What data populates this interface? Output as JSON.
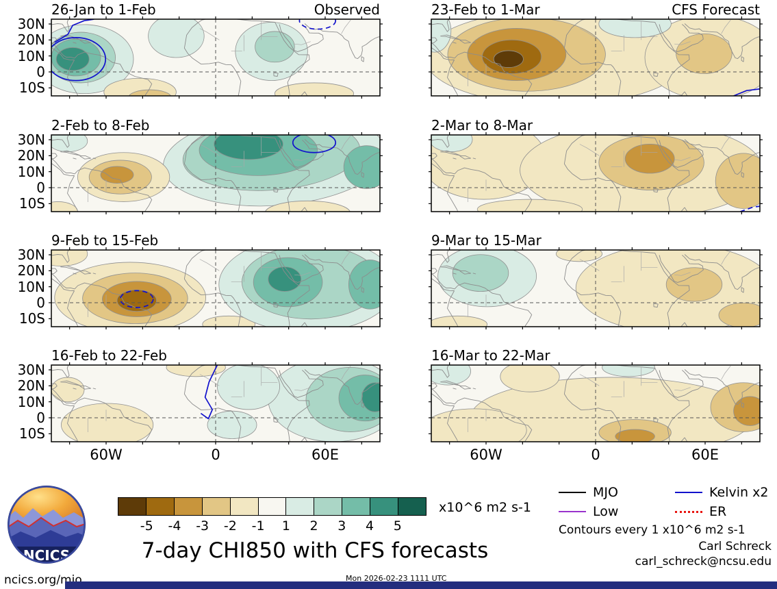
{
  "figure": {
    "title": "7-day CHI850 with CFS forecasts",
    "unit_label": "x10^6 m2 s-1",
    "contour_note": "Contours every 1 x10^6 m2 s-1",
    "credit_name": "Carl Schreck",
    "credit_email": "carl_schreck@ncsu.edu",
    "footer_left": "ncics.org/mjo",
    "timestamp": "Mon 2026-02-23 1111 UTC",
    "logo_text": "NCICS"
  },
  "legend": {
    "items": [
      {
        "key": "mjo",
        "label": "MJO",
        "color": "#000000",
        "line_style": "solid"
      },
      {
        "key": "kelvin",
        "label": "Kelvin x2",
        "color": "#1111cc",
        "line_style": "solid"
      },
      {
        "key": "low",
        "label": "Low",
        "color": "#9932cc",
        "line_style": "solid"
      },
      {
        "key": "er",
        "label": "ER",
        "color": "#e8140f",
        "line_style": "dotted"
      }
    ]
  },
  "chart_data": {
    "type": "heatmap",
    "description": "Grid of 8 filled-contour longitude-latitude maps of 7-day mean CHI850 velocity potential anomalies; left column observed, right column CFS forecast. Units x10^6 m2 s-1, contours every 1.",
    "columns": [
      "Observed",
      "CFS Forecast"
    ],
    "axes": {
      "lat_labels": [
        "30N",
        "20N",
        "10N",
        "0",
        "10S"
      ],
      "lat_values": [
        30,
        20,
        10,
        0,
        -10
      ],
      "lon_labels": [
        "60W",
        "0",
        "60E"
      ],
      "lon_values": [
        -60,
        0,
        60
      ],
      "lat_range": [
        -15,
        33
      ],
      "lon_range": [
        -90,
        90
      ],
      "grid": "dashed line at equator and prime meridian"
    },
    "colorbar": {
      "tick_labels": [
        "-5",
        "-4",
        "-3",
        "-2",
        "-1",
        "1",
        "2",
        "3",
        "4",
        "5"
      ],
      "levels": [
        -5,
        -4,
        -3,
        -2,
        -1,
        1,
        2,
        3,
        4,
        5
      ],
      "colors": [
        "#5e3b08",
        "#9f6a10",
        "#c8953c",
        "#e2c685",
        "#f2e7c2",
        "#f8f7f1",
        "#d9ece4",
        "#abd6c6",
        "#74bda8",
        "#37917d",
        "#15604f"
      ],
      "unit": "x10^6 m2 s-1"
    },
    "panels": [
      {
        "title": "26-Jan to 1-Feb",
        "column": "Observed",
        "blobs": [
          {
            "x": 0.1,
            "y": 0.52,
            "rx": 0.15,
            "ry": 0.45,
            "level": 1
          },
          {
            "x": 0.09,
            "y": 0.5,
            "rx": 0.105,
            "ry": 0.33,
            "level": 2
          },
          {
            "x": 0.075,
            "y": 0.5,
            "rx": 0.075,
            "ry": 0.24,
            "level": 3
          },
          {
            "x": 0.065,
            "y": 0.52,
            "rx": 0.05,
            "ry": 0.15,
            "level": 4
          },
          {
            "x": 0.38,
            "y": 0.22,
            "rx": 0.085,
            "ry": 0.28,
            "level": 1
          },
          {
            "x": 0.67,
            "y": 0.42,
            "rx": 0.11,
            "ry": 0.38,
            "level": 1
          },
          {
            "x": 0.68,
            "y": 0.36,
            "rx": 0.06,
            "ry": 0.2,
            "level": 2
          },
          {
            "x": 0.27,
            "y": 0.95,
            "rx": 0.11,
            "ry": 0.18,
            "level": -1
          },
          {
            "x": 0.3,
            "y": 1.02,
            "rx": 0.065,
            "ry": 0.1,
            "level": -2
          },
          {
            "x": 0.8,
            "y": 0.97,
            "rx": 0.12,
            "ry": 0.14,
            "level": -1
          }
        ],
        "contour_lines": [
          {
            "shape": "ellipse",
            "x": 0.075,
            "y": 0.52,
            "rx": 0.09,
            "ry": 0.28,
            "wave": "kelvin",
            "dashed": false
          },
          {
            "shape": "line",
            "points": [
              [
                0.01,
                0.3
              ],
              [
                0.05,
                0.2
              ],
              [
                0.065,
                0.08
              ],
              [
                0.1,
                0.02
              ],
              [
                0.13,
                0.0
              ]
            ],
            "wave": "kelvin",
            "dashed": false
          },
          {
            "shape": "ellipse",
            "x": 0.81,
            "y": 0.02,
            "rx": 0.055,
            "ry": 0.11,
            "wave": "kelvin",
            "dashed": true
          }
        ]
      },
      {
        "title": "2-Feb to 8-Feb",
        "column": "Observed",
        "blobs": [
          {
            "x": 0.68,
            "y": 0.32,
            "rx": 0.34,
            "ry": 0.6,
            "level": 1,
            "rot": -4
          },
          {
            "x": 0.67,
            "y": 0.26,
            "rx": 0.27,
            "ry": 0.46,
            "level": 2,
            "rot": -4
          },
          {
            "x": 0.63,
            "y": 0.2,
            "rx": 0.18,
            "ry": 0.33,
            "level": 3
          },
          {
            "x": 0.6,
            "y": 0.12,
            "rx": 0.105,
            "ry": 0.2,
            "level": 4
          },
          {
            "x": 0.96,
            "y": 0.42,
            "rx": 0.07,
            "ry": 0.28,
            "level": 3
          },
          {
            "x": 0.05,
            "y": 0.08,
            "rx": 0.06,
            "ry": 0.14,
            "level": 1
          },
          {
            "x": 0.22,
            "y": 0.55,
            "rx": 0.14,
            "ry": 0.32,
            "level": -1
          },
          {
            "x": 0.21,
            "y": 0.55,
            "rx": 0.095,
            "ry": 0.22,
            "level": -2
          },
          {
            "x": 0.2,
            "y": 0.52,
            "rx": 0.05,
            "ry": 0.11,
            "level": -3
          },
          {
            "x": 0.78,
            "y": 1.02,
            "rx": 0.13,
            "ry": 0.16,
            "level": -1
          },
          {
            "x": 0.02,
            "y": 1.0,
            "rx": 0.06,
            "ry": 0.13,
            "level": -1
          }
        ],
        "contour_lines": [
          {
            "shape": "ellipse",
            "x": 0.8,
            "y": 0.1,
            "rx": 0.065,
            "ry": 0.13,
            "wave": "kelvin",
            "dashed": false
          }
        ]
      },
      {
        "title": "9-Feb to 15-Feb",
        "column": "Observed",
        "blobs": [
          {
            "x": 0.24,
            "y": 0.62,
            "rx": 0.23,
            "ry": 0.46,
            "level": -1
          },
          {
            "x": 0.255,
            "y": 0.63,
            "rx": 0.16,
            "ry": 0.33,
            "level": -2
          },
          {
            "x": 0.26,
            "y": 0.64,
            "rx": 0.105,
            "ry": 0.23,
            "level": -3
          },
          {
            "x": 0.26,
            "y": 0.66,
            "rx": 0.06,
            "ry": 0.14,
            "level": -4
          },
          {
            "x": 0.03,
            "y": 0.05,
            "rx": 0.08,
            "ry": 0.16,
            "level": -1
          },
          {
            "x": 0.54,
            "y": 0.97,
            "rx": 0.08,
            "ry": 0.11,
            "level": -1
          },
          {
            "x": 0.78,
            "y": 0.45,
            "rx": 0.27,
            "ry": 0.62,
            "level": 1
          },
          {
            "x": 0.79,
            "y": 0.42,
            "rx": 0.21,
            "ry": 0.48,
            "level": 2
          },
          {
            "x": 0.72,
            "y": 0.42,
            "rx": 0.105,
            "ry": 0.32,
            "level": 3
          },
          {
            "x": 0.97,
            "y": 0.45,
            "rx": 0.065,
            "ry": 0.32,
            "level": 3
          },
          {
            "x": 0.71,
            "y": 0.38,
            "rx": 0.05,
            "ry": 0.16,
            "level": 4
          }
        ],
        "contour_lines": [
          {
            "shape": "ellipse",
            "x": 0.26,
            "y": 0.64,
            "rx": 0.05,
            "ry": 0.11,
            "wave": "kelvin",
            "dashed": true
          }
        ]
      },
      {
        "title": "16-Feb to 22-Feb",
        "column": "Observed",
        "blobs": [
          {
            "x": 0.86,
            "y": 0.45,
            "rx": 0.2,
            "ry": 0.55,
            "level": 1
          },
          {
            "x": 0.91,
            "y": 0.45,
            "rx": 0.135,
            "ry": 0.42,
            "level": 2
          },
          {
            "x": 0.955,
            "y": 0.43,
            "rx": 0.08,
            "ry": 0.3,
            "level": 3
          },
          {
            "x": 0.985,
            "y": 0.42,
            "rx": 0.04,
            "ry": 0.19,
            "level": 4
          },
          {
            "x": 0.6,
            "y": 0.28,
            "rx": 0.095,
            "ry": 0.3,
            "level": 1
          },
          {
            "x": 0.55,
            "y": 0.78,
            "rx": 0.075,
            "ry": 0.18,
            "level": 1
          },
          {
            "x": 0.17,
            "y": 0.78,
            "rx": 0.14,
            "ry": 0.28,
            "level": -1
          },
          {
            "x": 0.44,
            "y": 0.03,
            "rx": 0.09,
            "ry": 0.12,
            "level": -1
          },
          {
            "x": 0.05,
            "y": 0.32,
            "rx": 0.05,
            "ry": 0.16,
            "level": -1
          }
        ],
        "contour_lines": [
          {
            "shape": "line",
            "points": [
              [
                0.505,
                0.0
              ],
              [
                0.48,
                0.22
              ],
              [
                0.468,
                0.42
              ],
              [
                0.49,
                0.58
              ],
              [
                0.478,
                0.7
              ],
              [
                0.455,
                0.63
              ]
            ],
            "wave": "kelvin",
            "dashed": false
          }
        ]
      },
      {
        "title": "23-Feb to 1-Mar",
        "column": "CFS Forecast",
        "blobs": [
          {
            "x": 0.38,
            "y": 0.5,
            "rx": 0.4,
            "ry": 0.62,
            "level": -1
          },
          {
            "x": 0.85,
            "y": 0.5,
            "rx": 0.2,
            "ry": 0.55,
            "level": -1
          },
          {
            "x": 0.29,
            "y": 0.46,
            "rx": 0.24,
            "ry": 0.48,
            "level": -2
          },
          {
            "x": 0.26,
            "y": 0.46,
            "rx": 0.15,
            "ry": 0.34,
            "level": -3
          },
          {
            "x": 0.245,
            "y": 0.49,
            "rx": 0.09,
            "ry": 0.22,
            "level": -4
          },
          {
            "x": 0.235,
            "y": 0.52,
            "rx": 0.045,
            "ry": 0.11,
            "level": -5
          },
          {
            "x": 0.83,
            "y": 0.45,
            "rx": 0.085,
            "ry": 0.26,
            "level": -2
          },
          {
            "x": 0.01,
            "y": 0.15,
            "rx": 0.05,
            "ry": 0.28,
            "level": 1
          },
          {
            "x": 0.62,
            "y": 0.06,
            "rx": 0.11,
            "ry": 0.18,
            "level": 1
          }
        ],
        "contour_lines": [
          {
            "shape": "line",
            "points": [
              [
                0.92,
                1.0
              ],
              [
                0.96,
                0.93
              ],
              [
                1.0,
                0.91
              ]
            ],
            "wave": "kelvin",
            "dashed": false
          }
        ]
      },
      {
        "title": "2-Mar to 8-Mar",
        "column": "CFS Forecast",
        "blobs": [
          {
            "x": 0.16,
            "y": 0.32,
            "rx": 0.19,
            "ry": 0.52,
            "level": -1
          },
          {
            "x": 0.64,
            "y": 0.46,
            "rx": 0.37,
            "ry": 0.62,
            "level": -1
          },
          {
            "x": 0.67,
            "y": 0.36,
            "rx": 0.16,
            "ry": 0.36,
            "level": -2
          },
          {
            "x": 0.665,
            "y": 0.31,
            "rx": 0.075,
            "ry": 0.19,
            "level": -3
          },
          {
            "x": 0.95,
            "y": 0.6,
            "rx": 0.085,
            "ry": 0.36,
            "level": -2
          },
          {
            "x": 0.3,
            "y": 0.97,
            "rx": 0.16,
            "ry": 0.13,
            "level": -1
          },
          {
            "x": 0.06,
            "y": 0.06,
            "rx": 0.065,
            "ry": 0.16,
            "level": 1
          }
        ],
        "contour_lines": [
          {
            "shape": "line",
            "points": [
              [
                0.94,
                1.0
              ],
              [
                0.98,
                0.94
              ],
              [
                1.0,
                0.93
              ]
            ],
            "wave": "kelvin",
            "dashed": true
          }
        ]
      },
      {
        "title": "9-Mar to 15-Mar",
        "column": "CFS Forecast",
        "blobs": [
          {
            "x": 0.17,
            "y": 0.34,
            "rx": 0.15,
            "ry": 0.4,
            "level": 1
          },
          {
            "x": 0.15,
            "y": 0.3,
            "rx": 0.085,
            "ry": 0.24,
            "level": 2
          },
          {
            "x": 0.74,
            "y": 0.5,
            "rx": 0.3,
            "ry": 0.58,
            "level": -1
          },
          {
            "x": 0.8,
            "y": 0.45,
            "rx": 0.085,
            "ry": 0.22,
            "level": -2
          },
          {
            "x": 0.95,
            "y": 0.85,
            "rx": 0.075,
            "ry": 0.16,
            "level": -2
          },
          {
            "x": 0.08,
            "y": 0.97,
            "rx": 0.09,
            "ry": 0.11,
            "level": -1
          },
          {
            "x": 0.45,
            "y": 0.05,
            "rx": 0.07,
            "ry": 0.1,
            "level": -1
          }
        ],
        "contour_lines": []
      },
      {
        "title": "16-Mar to 22-Mar",
        "column": "CFS Forecast",
        "blobs": [
          {
            "x": 0.55,
            "y": 0.68,
            "rx": 0.43,
            "ry": 0.52,
            "level": -1
          },
          {
            "x": 0.13,
            "y": 0.85,
            "rx": 0.16,
            "ry": 0.28,
            "level": -1
          },
          {
            "x": 0.3,
            "y": 0.15,
            "rx": 0.09,
            "ry": 0.2,
            "level": -1
          },
          {
            "x": 0.62,
            "y": 0.88,
            "rx": 0.11,
            "ry": 0.17,
            "level": -2
          },
          {
            "x": 0.62,
            "y": 0.93,
            "rx": 0.06,
            "ry": 0.09,
            "level": -3
          },
          {
            "x": 0.95,
            "y": 0.55,
            "rx": 0.1,
            "ry": 0.32,
            "level": -2
          },
          {
            "x": 0.97,
            "y": 0.6,
            "rx": 0.05,
            "ry": 0.19,
            "level": -3
          },
          {
            "x": 0.05,
            "y": 0.08,
            "rx": 0.07,
            "ry": 0.18,
            "level": 1
          },
          {
            "x": 0.6,
            "y": 0.03,
            "rx": 0.08,
            "ry": 0.12,
            "level": 1
          }
        ],
        "contour_lines": []
      }
    ]
  }
}
